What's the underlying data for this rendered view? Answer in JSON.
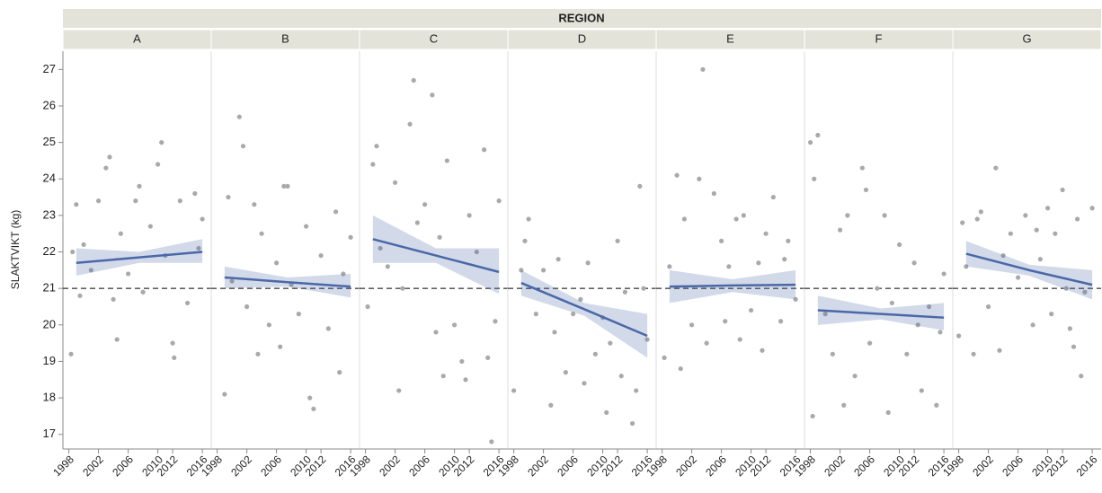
{
  "chart_data": {
    "type": "scatter",
    "title": "REGION",
    "ylabel": "SLAKTVIKT (kg)",
    "ylim": [
      16.6,
      27.5
    ],
    "yticks": [
      17,
      18,
      19,
      20,
      21,
      22,
      23,
      24,
      25,
      26,
      27
    ],
    "xlim": [
      1997.2,
      2017.2
    ],
    "xticks": [
      1998,
      2002,
      2006,
      2010,
      2012,
      2016
    ],
    "reference_line": 21,
    "point_color": "#a9a9a9",
    "fit_color": "#4a68a8",
    "panels": [
      {
        "title": "A",
        "x": [
          1998.3,
          1998.5,
          1999,
          1999.5,
          2000,
          2001,
          2002,
          2003,
          2003.5,
          2004,
          2004.5,
          2005,
          2006,
          2007,
          2007.5,
          2008,
          2009,
          2010,
          2010.5,
          2011,
          2012,
          2012.2,
          2013,
          2014,
          2015,
          2015.5,
          2016
        ],
        "y": [
          19.2,
          22.0,
          23.3,
          20.8,
          22.2,
          21.5,
          23.4,
          24.3,
          24.6,
          20.7,
          19.6,
          22.5,
          21.4,
          23.4,
          23.8,
          20.9,
          22.7,
          24.4,
          25.0,
          21.9,
          19.5,
          19.1,
          23.4,
          20.6,
          23.6,
          22.1,
          22.9
        ],
        "fit_x": [
          1999,
          2007.5,
          2016
        ],
        "fit_y": [
          21.7,
          21.85,
          22.0
        ],
        "band_lower": [
          21.35,
          21.7,
          21.7
        ],
        "band_upper": [
          22.1,
          22.0,
          22.35
        ]
      },
      {
        "title": "B",
        "x": [
          1999,
          1999.5,
          2000,
          2001,
          2001.5,
          2002,
          2003,
          2003.5,
          2004,
          2005,
          2006,
          2006.5,
          2007,
          2007.5,
          2008,
          2009,
          2010,
          2010.5,
          2011,
          2012,
          2013,
          2014,
          2014.5,
          2015,
          2016
        ],
        "y": [
          18.1,
          23.5,
          21.2,
          25.7,
          24.9,
          20.5,
          23.3,
          19.2,
          22.5,
          20.0,
          21.7,
          19.4,
          23.8,
          23.8,
          21.1,
          20.3,
          22.7,
          18.0,
          17.7,
          21.9,
          19.9,
          23.1,
          18.7,
          21.4,
          22.4
        ],
        "fit_x": [
          1999,
          2007.5,
          2016
        ],
        "fit_y": [
          21.3,
          21.17,
          21.05
        ],
        "band_lower": [
          21.0,
          21.05,
          20.75
        ],
        "band_upper": [
          21.6,
          21.3,
          21.4
        ]
      },
      {
        "title": "C",
        "x": [
          1998.3,
          1999,
          1999.5,
          2000,
          2001,
          2002,
          2002.5,
          2003,
          2004,
          2004.5,
          2005,
          2006,
          2007,
          2007.5,
          2008,
          2008.5,
          2009,
          2010,
          2011,
          2011.5,
          2012,
          2013,
          2014,
          2014.5,
          2015,
          2015.5,
          2016
        ],
        "y": [
          20.5,
          24.4,
          24.9,
          22.1,
          21.6,
          23.9,
          18.2,
          21.0,
          25.5,
          26.7,
          22.8,
          23.3,
          26.3,
          19.8,
          22.4,
          18.6,
          24.5,
          20.0,
          19.0,
          18.5,
          23.0,
          22.0,
          24.8,
          19.1,
          16.8,
          20.1,
          23.4
        ],
        "fit_x": [
          1999,
          2007.5,
          2016
        ],
        "fit_y": [
          22.35,
          21.9,
          21.45
        ],
        "band_lower": [
          21.7,
          21.7,
          20.85
        ],
        "band_upper": [
          23.0,
          22.1,
          22.1
        ]
      },
      {
        "title": "D",
        "x": [
          1998,
          1999,
          1999.5,
          2000,
          2001,
          2002,
          2003,
          2003.5,
          2004,
          2005,
          2006,
          2007,
          2007.5,
          2008,
          2009,
          2010,
          2010.5,
          2011,
          2012,
          2012.5,
          2013,
          2014,
          2014.5,
          2015,
          2015.5,
          2016
        ],
        "y": [
          18.2,
          21.5,
          22.3,
          22.9,
          20.3,
          21.5,
          17.8,
          19.8,
          21.8,
          18.7,
          20.3,
          20.7,
          18.4,
          21.7,
          19.2,
          20.2,
          17.6,
          19.5,
          22.3,
          18.6,
          20.9,
          17.3,
          18.2,
          23.8,
          21.0,
          19.6
        ],
        "fit_x": [
          1999,
          2007.5,
          2016
        ],
        "fit_y": [
          21.15,
          20.43,
          19.7
        ],
        "band_lower": [
          20.8,
          20.25,
          19.1
        ],
        "band_upper": [
          21.5,
          20.6,
          20.3
        ]
      },
      {
        "title": "E",
        "x": [
          1998.3,
          1999,
          2000,
          2000.5,
          2001,
          2002,
          2003,
          2003.5,
          2004,
          2005,
          2006,
          2006.5,
          2007,
          2008,
          2008.5,
          2009,
          2010,
          2011,
          2011.5,
          2012,
          2013,
          2014,
          2014.5,
          2015,
          2016
        ],
        "y": [
          19.1,
          21.6,
          24.1,
          18.8,
          22.9,
          20.0,
          24.0,
          27.0,
          19.5,
          23.6,
          22.3,
          20.1,
          21.6,
          22.9,
          19.6,
          23.0,
          20.4,
          21.7,
          19.3,
          22.5,
          23.5,
          20.1,
          21.8,
          22.3,
          20.7
        ],
        "fit_x": [
          1999,
          2007.5,
          2016
        ],
        "fit_y": [
          21.05,
          21.08,
          21.1
        ],
        "band_lower": [
          20.6,
          20.9,
          20.7
        ],
        "band_upper": [
          21.5,
          21.25,
          21.5
        ]
      },
      {
        "title": "F",
        "x": [
          1998,
          1998.3,
          1998.5,
          1999,
          2000,
          2001,
          2002,
          2002.5,
          2003,
          2004,
          2005,
          2005.5,
          2006,
          2007,
          2008,
          2008.5,
          2009,
          2010,
          2011,
          2012,
          2012.5,
          2013,
          2014,
          2015,
          2015.5,
          2016
        ],
        "y": [
          25.0,
          17.5,
          24.0,
          25.2,
          20.3,
          19.2,
          22.6,
          17.8,
          23.0,
          18.6,
          24.3,
          23.7,
          19.5,
          21.0,
          23.0,
          17.6,
          20.6,
          22.2,
          19.2,
          21.7,
          20.0,
          18.2,
          20.5,
          17.8,
          19.8,
          21.4
        ],
        "fit_x": [
          1999,
          2007.5,
          2016
        ],
        "fit_y": [
          20.4,
          20.3,
          20.2
        ],
        "band_lower": [
          20.0,
          20.15,
          19.85
        ],
        "band_upper": [
          20.8,
          20.45,
          20.6
        ]
      },
      {
        "title": "G",
        "x": [
          1998,
          1998.5,
          1999,
          2000,
          2000.5,
          2001,
          2002,
          2003,
          2003.5,
          2004,
          2005,
          2006,
          2007,
          2008,
          2008.5,
          2009,
          2010,
          2010.5,
          2011,
          2012,
          2012.5,
          2013,
          2013.5,
          2014,
          2014.5,
          2015,
          2016
        ],
        "y": [
          19.7,
          22.8,
          21.6,
          19.2,
          22.9,
          23.1,
          20.5,
          24.3,
          19.3,
          21.9,
          22.5,
          21.3,
          23.0,
          20.0,
          22.6,
          21.8,
          23.2,
          20.3,
          22.5,
          23.7,
          21.0,
          19.9,
          19.4,
          22.9,
          18.6,
          20.9,
          23.2
        ],
        "fit_x": [
          1999,
          2007.5,
          2016
        ],
        "fit_y": [
          21.95,
          21.5,
          21.1
        ],
        "band_lower": [
          21.6,
          21.35,
          20.7
        ],
        "band_upper": [
          22.3,
          21.65,
          21.5
        ]
      }
    ]
  }
}
